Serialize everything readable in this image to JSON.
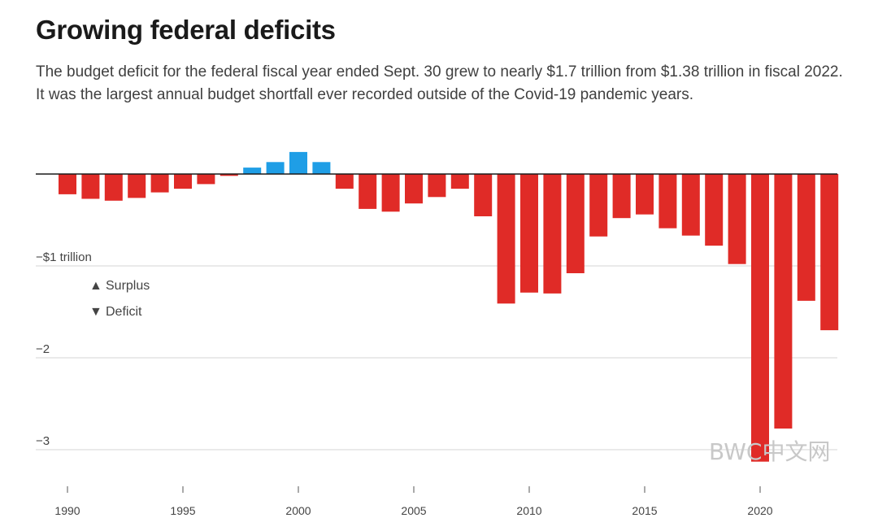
{
  "chart_data": {
    "type": "bar",
    "title": "Growing federal deficits",
    "subtitle": "The budget deficit for the federal fiscal year ended Sept. 30 grew to nearly $1.7 trillion from $1.38 trillion in fiscal 2022. It was the largest annual budget shortfall ever recorded outside of the Covid-19 pandemic years.",
    "xlabel": "",
    "ylabel": "",
    "unit": "trillion dollars",
    "ylim": [
      -3.2,
      0.3
    ],
    "x": [
      1990,
      1991,
      1992,
      1993,
      1994,
      1995,
      1996,
      1997,
      1998,
      1999,
      2000,
      2001,
      2002,
      2003,
      2004,
      2005,
      2006,
      2007,
      2008,
      2009,
      2010,
      2011,
      2012,
      2013,
      2014,
      2015,
      2016,
      2017,
      2018,
      2019,
      2020,
      2021,
      2022,
      2023
    ],
    "values": [
      -0.22,
      -0.27,
      -0.29,
      -0.26,
      -0.2,
      -0.16,
      -0.11,
      -0.02,
      0.07,
      0.13,
      0.24,
      0.13,
      -0.16,
      -0.38,
      -0.41,
      -0.32,
      -0.25,
      -0.16,
      -0.46,
      -1.41,
      -1.29,
      -1.3,
      -1.08,
      -0.68,
      -0.48,
      -0.44,
      -0.59,
      -0.67,
      -0.78,
      -0.98,
      -3.13,
      -2.77,
      -1.38,
      -1.7
    ],
    "series_colors": {
      "surplus": "#1f9ee6",
      "deficit": "#e02b27"
    },
    "yticks": [
      {
        "value": -1,
        "label": "−$1 trillion"
      },
      {
        "value": -2,
        "label": "−2"
      },
      {
        "value": -3,
        "label": "−3"
      }
    ],
    "xticks": [
      {
        "value": 1990,
        "label": "1990"
      },
      {
        "value": 1995,
        "label": "1995"
      },
      {
        "value": 2000,
        "label": "2000"
      },
      {
        "value": 2005,
        "label": "2005"
      },
      {
        "value": 2010,
        "label": "2010"
      },
      {
        "value": 2015,
        "label": "2015"
      },
      {
        "value": 2020,
        "label": "2020"
      }
    ],
    "legend": [
      {
        "symbol": "▲",
        "label": "Surplus"
      },
      {
        "symbol": "▼",
        "label": "Deficit"
      }
    ],
    "legend_placement": "left, below -$1 trillion line",
    "grid": true
  },
  "watermark": "BWC中文网"
}
